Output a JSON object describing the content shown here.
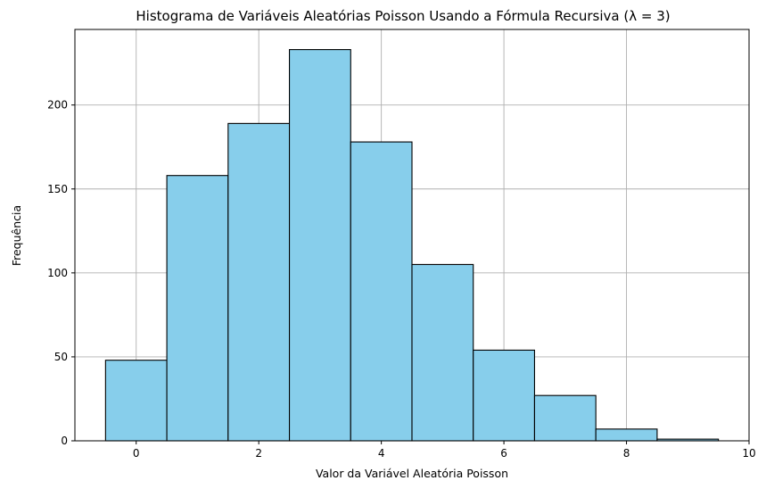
{
  "chart_data": {
    "type": "bar",
    "subtype": "histogram",
    "title": "Histograma de Variáveis Aleatórias Poisson Usando a Fórmula Recursiva (λ = 3)",
    "xlabel": "Valor da Variável Aleatória Poisson",
    "ylabel": "Frequência",
    "xlim": [
      -1,
      10
    ],
    "ylim": [
      0,
      245
    ],
    "xticks": [
      0,
      2,
      4,
      6,
      8,
      10
    ],
    "yticks": [
      0,
      50,
      100,
      150,
      200
    ],
    "bin_width": 1,
    "bins": [
      {
        "x": 0,
        "value": 48
      },
      {
        "x": 1,
        "value": 158
      },
      {
        "x": 2,
        "value": 189
      },
      {
        "x": 3,
        "value": 233
      },
      {
        "x": 4,
        "value": 178
      },
      {
        "x": 5,
        "value": 105
      },
      {
        "x": 6,
        "value": 54
      },
      {
        "x": 7,
        "value": 27
      },
      {
        "x": 8,
        "value": 7
      },
      {
        "x": 9,
        "value": 1
      }
    ],
    "bar_color": "#87ceeb",
    "edge_color": "#000000",
    "grid": true,
    "legend": "none"
  }
}
